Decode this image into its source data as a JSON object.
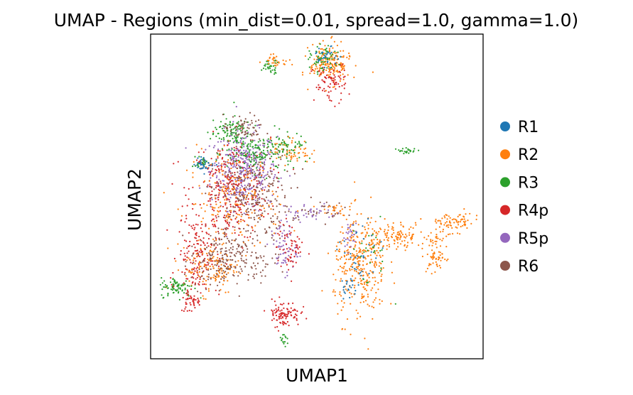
{
  "chart_data": {
    "type": "scatter",
    "title": "UMAP - Regions (min_dist=0.01, spread=1.0, gamma=1.0)",
    "xlabel": "UMAP1",
    "ylabel": "UMAP2",
    "xlim": [
      0,
      100
    ],
    "ylim": [
      0,
      100
    ],
    "ticks": "none",
    "grid": false,
    "legend_position": "right",
    "series": [
      {
        "name": "R1",
        "color": "#1f77b4"
      },
      {
        "name": "R2",
        "color": "#ff7f0e"
      },
      {
        "name": "R3",
        "color": "#2ca02c"
      },
      {
        "name": "R4p",
        "color": "#d62728"
      },
      {
        "name": "R5p",
        "color": "#9467bd"
      },
      {
        "name": "R6",
        "color": "#8c564b"
      }
    ],
    "clusters": [
      {
        "series": "R5p",
        "cx": 28,
        "cy": 58,
        "sx": 5,
        "sy": 6,
        "n": 420
      },
      {
        "series": "R4p",
        "cx": 24,
        "cy": 52,
        "sx": 6,
        "sy": 8,
        "n": 300
      },
      {
        "series": "R6",
        "cx": 30,
        "cy": 50,
        "sx": 6,
        "sy": 7,
        "n": 260
      },
      {
        "series": "R2",
        "cx": 25,
        "cy": 48,
        "sx": 7,
        "sy": 8,
        "n": 200
      },
      {
        "series": "R3",
        "cx": 33,
        "cy": 63,
        "sx": 5,
        "sy": 3,
        "n": 150
      },
      {
        "series": "R4p",
        "cx": 14,
        "cy": 32,
        "sx": 3,
        "sy": 6,
        "n": 150
      },
      {
        "series": "R6",
        "cx": 20,
        "cy": 30,
        "sx": 4,
        "sy": 5,
        "n": 130
      },
      {
        "series": "R2",
        "cx": 18,
        "cy": 28,
        "sx": 4,
        "sy": 4,
        "n": 110
      },
      {
        "series": "R3",
        "cx": 8,
        "cy": 22,
        "sx": 2.5,
        "sy": 1.5,
        "n": 80
      },
      {
        "series": "R4p",
        "cx": 12,
        "cy": 18,
        "sx": 1.5,
        "sy": 2,
        "n": 45
      },
      {
        "series": "R4p",
        "cx": 40,
        "cy": 14,
        "sx": 2.5,
        "sy": 2,
        "n": 100
      },
      {
        "series": "R6",
        "cx": 27,
        "cy": 30,
        "sx": 6,
        "sy": 3,
        "n": 100
      },
      {
        "series": "R5p",
        "cx": 40,
        "cy": 34,
        "sx": 2,
        "sy": 4,
        "n": 70
      },
      {
        "series": "R4p",
        "cx": 42,
        "cy": 34,
        "sx": 2,
        "sy": 4,
        "n": 60
      },
      {
        "series": "R3",
        "cx": 24,
        "cy": 70,
        "sx": 3,
        "sy": 2.5,
        "n": 110
      },
      {
        "series": "R6",
        "cx": 28,
        "cy": 71,
        "sx": 3,
        "sy": 2,
        "n": 60
      },
      {
        "series": "R2",
        "cx": 42,
        "cy": 64,
        "sx": 3,
        "sy": 2,
        "n": 60
      },
      {
        "series": "R3",
        "cx": 42,
        "cy": 66,
        "sx": 3,
        "sy": 1.5,
        "n": 40
      },
      {
        "series": "R1",
        "cx": 16,
        "cy": 60,
        "sx": 1.5,
        "sy": 1,
        "n": 40
      },
      {
        "series": "R3",
        "cx": 15,
        "cy": 61,
        "sx": 1.5,
        "sy": 1,
        "n": 15
      },
      {
        "series": "R5p",
        "cx": 48,
        "cy": 45,
        "sx": 4,
        "sy": 1.5,
        "n": 40
      },
      {
        "series": "R6",
        "cx": 50,
        "cy": 46,
        "sx": 4,
        "sy": 1.5,
        "n": 30
      },
      {
        "series": "R2",
        "cx": 55,
        "cy": 46,
        "sx": 2,
        "sy": 1,
        "n": 20
      },
      {
        "series": "R2",
        "cx": 63,
        "cy": 28,
        "sx": 4,
        "sy": 8,
        "n": 330
      },
      {
        "series": "R2",
        "cx": 73,
        "cy": 38,
        "sx": 5,
        "sy": 2,
        "n": 130
      },
      {
        "series": "R2",
        "cx": 86,
        "cy": 32,
        "sx": 1.5,
        "sy": 3,
        "n": 70
      },
      {
        "series": "R2",
        "cx": 91,
        "cy": 42,
        "sx": 4,
        "sy": 1.5,
        "n": 80
      },
      {
        "series": "R1",
        "cx": 63,
        "cy": 31,
        "sx": 3,
        "sy": 6,
        "n": 40
      },
      {
        "series": "R3",
        "cx": 66,
        "cy": 32,
        "sx": 3,
        "sy": 5,
        "n": 25
      },
      {
        "series": "R2",
        "cx": 54,
        "cy": 91,
        "sx": 3,
        "sy": 3,
        "n": 180
      },
      {
        "series": "R4p",
        "cx": 54,
        "cy": 85,
        "sx": 2.5,
        "sy": 3,
        "n": 80
      },
      {
        "series": "R3",
        "cx": 52,
        "cy": 92,
        "sx": 2,
        "sy": 2,
        "n": 60
      },
      {
        "series": "R1",
        "cx": 53,
        "cy": 93,
        "sx": 2,
        "sy": 1.5,
        "n": 30
      },
      {
        "series": "R3",
        "cx": 36,
        "cy": 90,
        "sx": 1.5,
        "sy": 1,
        "n": 35
      },
      {
        "series": "R2",
        "cx": 38,
        "cy": 92,
        "sx": 2,
        "sy": 1,
        "n": 30
      },
      {
        "series": "R3",
        "cx": 77,
        "cy": 64,
        "sx": 1.5,
        "sy": 0.5,
        "n": 25
      },
      {
        "series": "R1",
        "cx": 60,
        "cy": 22,
        "sx": 1.5,
        "sy": 1.5,
        "n": 20
      },
      {
        "series": "R3",
        "cx": 40,
        "cy": 6,
        "sx": 0.8,
        "sy": 1,
        "n": 15
      },
      {
        "series": "R5p",
        "cx": 60,
        "cy": 38,
        "sx": 1,
        "sy": 2,
        "n": 25
      }
    ]
  }
}
